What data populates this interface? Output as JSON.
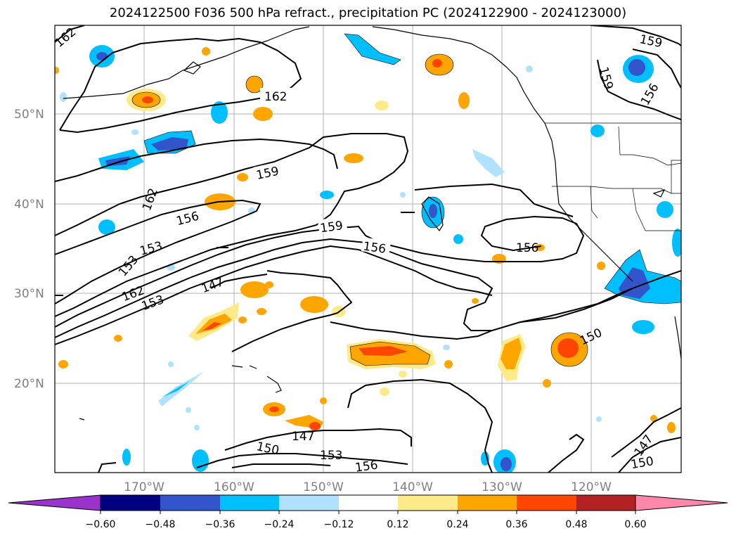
{
  "title": "2024122500 F036 500 hPa refract., precipitation PC (2024122900 - 2024123000)",
  "lat_labels": [
    "50°N",
    "40°N",
    "30°N",
    "20°N"
  ],
  "lon_labels": [
    "170°W",
    "160°W",
    "150°W",
    "140°W",
    "130°W",
    "120°W"
  ],
  "contour_labels": [
    "162",
    "159",
    "156",
    "153",
    "150",
    "147"
  ],
  "colorbar": {
    "ticks": [
      "−0.60",
      "−0.48",
      "−0.36",
      "−0.24",
      "−0.12",
      "0.12",
      "0.24",
      "0.36",
      "0.48",
      "0.60"
    ],
    "colors": [
      "#9933cc",
      "#000080",
      "#3355cc",
      "#00bfff",
      "#b0e2ff",
      "#ffffff",
      "#ffea8a",
      "#ffa500",
      "#ff4500",
      "#b22222",
      "#ff88aa"
    ]
  }
}
